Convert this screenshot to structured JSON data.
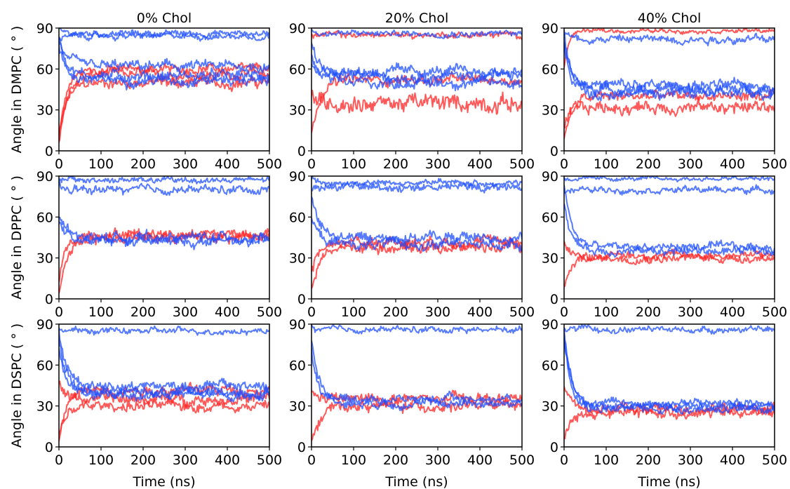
{
  "chart_data": {
    "type": "line",
    "layout": "3x3 grid of small multiples",
    "x_axis": {
      "label": "Time (ns)",
      "range": [
        0,
        500
      ],
      "ticks": [
        0,
        100,
        200,
        300,
        400,
        500
      ]
    },
    "y_axis": {
      "range": [
        0,
        90
      ],
      "ticks": [
        0,
        30,
        60,
        90
      ]
    },
    "columns": [
      "0% Chol",
      "20% Chol",
      "40% Chol"
    ],
    "rows": [
      "Angle in DMPC ( ° )",
      "Angle in DPPC ( ° )",
      "Angle in DSPC ( ° )"
    ],
    "colors": {
      "red": "#ff2222",
      "blue": "#1f4fff"
    },
    "legend": "none",
    "grid": false,
    "panels": [
      {
        "row": 0,
        "col": 0,
        "red": [
          {
            "y0": 8,
            "plateau": 50,
            "noise": 5
          },
          {
            "y0": 5,
            "plateau": 56,
            "noise": 5
          },
          {
            "y0": 10,
            "plateau": 60,
            "noise": 4
          }
        ],
        "blue": [
          {
            "y0": 88,
            "plateau": 86,
            "noise": 3
          },
          {
            "y0": 85,
            "plateau": 55,
            "noise": 5
          },
          {
            "y0": 80,
            "plateau": 62,
            "noise": 5
          },
          {
            "y0": 75,
            "plateau": 52,
            "noise": 5
          },
          {
            "y0": 82,
            "plateau": 84,
            "noise": 3
          }
        ]
      },
      {
        "row": 0,
        "col": 1,
        "red": [
          {
            "y0": 10,
            "plateau": 52,
            "noise": 5
          },
          {
            "y0": 40,
            "plateau": 35,
            "noise": 8
          },
          {
            "y0": 85,
            "plateau": 85,
            "noise": 3
          }
        ],
        "blue": [
          {
            "y0": 80,
            "plateau": 55,
            "noise": 5
          },
          {
            "y0": 70,
            "plateau": 50,
            "noise": 5
          },
          {
            "y0": 88,
            "plateau": 86,
            "noise": 3
          },
          {
            "y0": 65,
            "plateau": 58,
            "noise": 5
          }
        ]
      },
      {
        "row": 0,
        "col": 2,
        "red": [
          {
            "y0": 10,
            "plateau": 40,
            "noise": 5
          },
          {
            "y0": 15,
            "plateau": 32,
            "noise": 6
          },
          {
            "y0": 60,
            "plateau": 88,
            "noise": 2
          }
        ],
        "blue": [
          {
            "y0": 85,
            "plateau": 45,
            "noise": 5
          },
          {
            "y0": 80,
            "plateau": 48,
            "noise": 5
          },
          {
            "y0": 88,
            "plateau": 82,
            "noise": 4
          },
          {
            "y0": 75,
            "plateau": 42,
            "noise": 5
          }
        ]
      },
      {
        "row": 1,
        "col": 0,
        "red": [
          {
            "y0": 5,
            "plateau": 45,
            "noise": 5
          },
          {
            "y0": 15,
            "plateau": 48,
            "noise": 5
          }
        ],
        "blue": [
          {
            "y0": 88,
            "plateau": 87,
            "noise": 3
          },
          {
            "y0": 60,
            "plateau": 45,
            "noise": 5
          },
          {
            "y0": 55,
            "plateau": 42,
            "noise": 5
          },
          {
            "y0": 85,
            "plateau": 80,
            "noise": 4
          }
        ]
      },
      {
        "row": 1,
        "col": 1,
        "red": [
          {
            "y0": 5,
            "plateau": 38,
            "noise": 5
          },
          {
            "y0": 20,
            "plateau": 42,
            "noise": 5
          }
        ],
        "blue": [
          {
            "y0": 88,
            "plateau": 85,
            "noise": 3
          },
          {
            "y0": 75,
            "plateau": 45,
            "noise": 5
          },
          {
            "y0": 60,
            "plateau": 40,
            "noise": 5
          },
          {
            "y0": 80,
            "plateau": 82,
            "noise": 4
          }
        ]
      },
      {
        "row": 1,
        "col": 2,
        "red": [
          {
            "y0": 8,
            "plateau": 32,
            "noise": 4
          },
          {
            "y0": 40,
            "plateau": 30,
            "noise": 4
          }
        ],
        "blue": [
          {
            "y0": 88,
            "plateau": 88,
            "noise": 2
          },
          {
            "y0": 85,
            "plateau": 38,
            "noise": 4
          },
          {
            "y0": 70,
            "plateau": 35,
            "noise": 4
          },
          {
            "y0": 78,
            "plateau": 80,
            "noise": 3
          }
        ]
      },
      {
        "row": 2,
        "col": 0,
        "red": [
          {
            "y0": 45,
            "plateau": 35,
            "noise": 5
          },
          {
            "y0": 10,
            "plateau": 30,
            "noise": 5
          },
          {
            "y0": 5,
            "plateau": 42,
            "noise": 5
          }
        ],
        "blue": [
          {
            "y0": 88,
            "plateau": 85,
            "noise": 3
          },
          {
            "y0": 80,
            "plateau": 40,
            "noise": 5
          },
          {
            "y0": 85,
            "plateau": 45,
            "noise": 5
          },
          {
            "y0": 70,
            "plateau": 38,
            "noise": 5
          }
        ]
      },
      {
        "row": 2,
        "col": 1,
        "red": [
          {
            "y0": 5,
            "plateau": 30,
            "noise": 5
          },
          {
            "y0": 40,
            "plateau": 35,
            "noise": 5
          }
        ],
        "blue": [
          {
            "y0": 88,
            "plateau": 86,
            "noise": 3
          },
          {
            "y0": 80,
            "plateau": 35,
            "noise": 4
          },
          {
            "y0": 70,
            "plateau": 32,
            "noise": 4
          }
        ]
      },
      {
        "row": 2,
        "col": 2,
        "red": [
          {
            "y0": 5,
            "plateau": 25,
            "noise": 5
          },
          {
            "y0": 45,
            "plateau": 28,
            "noise": 5
          }
        ],
        "blue": [
          {
            "y0": 88,
            "plateau": 86,
            "noise": 3
          },
          {
            "y0": 85,
            "plateau": 30,
            "noise": 4
          },
          {
            "y0": 80,
            "plateau": 32,
            "noise": 4
          },
          {
            "y0": 82,
            "plateau": 28,
            "noise": 4
          }
        ]
      }
    ]
  }
}
